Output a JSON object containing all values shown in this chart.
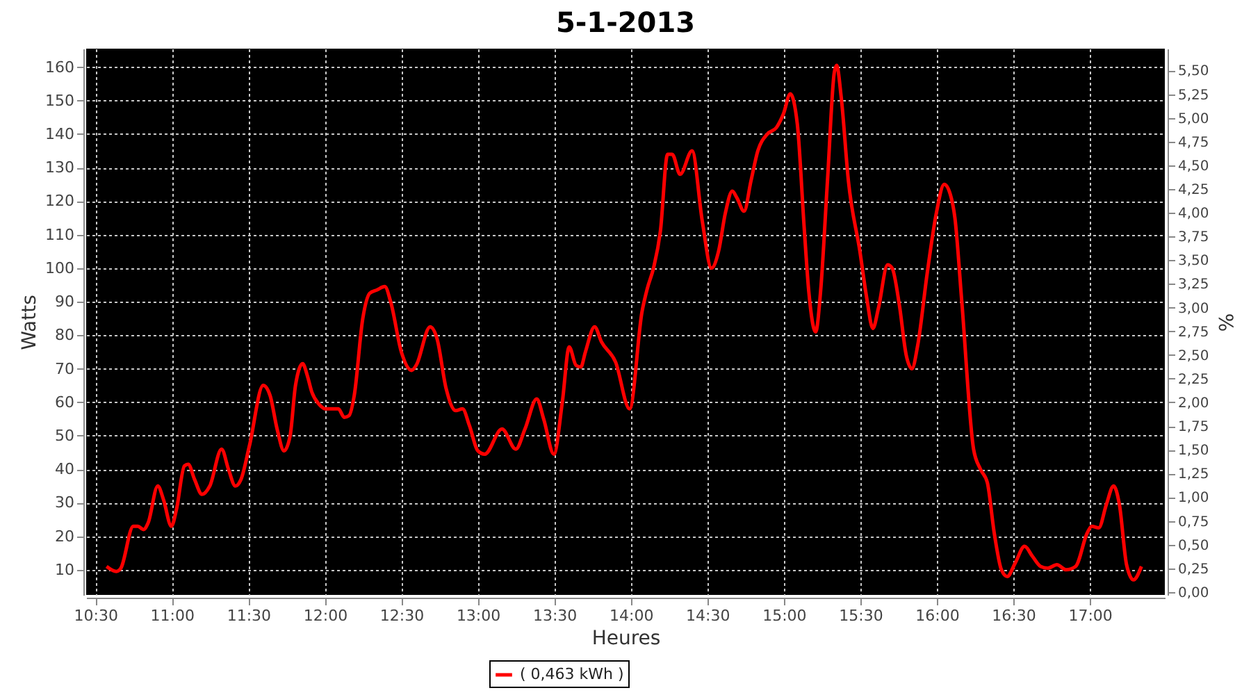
{
  "chart_data": {
    "type": "line",
    "title": "5-1-2013",
    "xlabel": "Heures",
    "ylabel": "Watts",
    "y2label": "%",
    "xlim": [
      10.44,
      17.49
    ],
    "xticks": [
      {
        "value": 10.5,
        "label": "10:30"
      },
      {
        "value": 11,
        "label": "11:00"
      },
      {
        "value": 11.5,
        "label": "11:30"
      },
      {
        "value": 12,
        "label": "12:00"
      },
      {
        "value": 12.5,
        "label": "12:30"
      },
      {
        "value": 13,
        "label": "13:00"
      },
      {
        "value": 13.5,
        "label": "13:30"
      },
      {
        "value": 14,
        "label": "14:00"
      },
      {
        "value": 14.5,
        "label": "14:30"
      },
      {
        "value": 15,
        "label": "15:00"
      },
      {
        "value": 15.5,
        "label": "15:30"
      },
      {
        "value": 16,
        "label": "16:00"
      },
      {
        "value": 16.5,
        "label": "16:30"
      },
      {
        "value": 17,
        "label": "17:00"
      }
    ],
    "ylim": [
      2.5,
      165.5
    ],
    "yticks": [
      10,
      20,
      30,
      40,
      50,
      60,
      70,
      80,
      90,
      100,
      110,
      120,
      130,
      140,
      150,
      160
    ],
    "y2lim": [
      -0.03,
      5.73
    ],
    "y2ticks": [
      {
        "value": 0,
        "label": "0,00"
      },
      {
        "value": 0.25,
        "label": "0,25"
      },
      {
        "value": 0.5,
        "label": "0,50"
      },
      {
        "value": 0.75,
        "label": "0,75"
      },
      {
        "value": 1,
        "label": "1,00"
      },
      {
        "value": 1.25,
        "label": "1,25"
      },
      {
        "value": 1.5,
        "label": "1,50"
      },
      {
        "value": 1.75,
        "label": "1,75"
      },
      {
        "value": 2,
        "label": "2,00"
      },
      {
        "value": 2.25,
        "label": "2,25"
      },
      {
        "value": 2.5,
        "label": "2,50"
      },
      {
        "value": 2.75,
        "label": "2,75"
      },
      {
        "value": 3,
        "label": "3,00"
      },
      {
        "value": 3.25,
        "label": "3,25"
      },
      {
        "value": 3.5,
        "label": "3,50"
      },
      {
        "value": 3.75,
        "label": "3,75"
      },
      {
        "value": 4,
        "label": "4,00"
      },
      {
        "value": 4.25,
        "label": "4,25"
      },
      {
        "value": 4.5,
        "label": "4,50"
      },
      {
        "value": 4.75,
        "label": "4,75"
      },
      {
        "value": 5,
        "label": "5,00"
      },
      {
        "value": 5.25,
        "label": "5,25"
      },
      {
        "value": 5.5,
        "label": "5,50"
      }
    ],
    "grid": true,
    "legend": "bottom",
    "series": [
      {
        "name": "( 0,463 kWh )",
        "color": "#ff0000",
        "x": [
          10.573,
          10.637,
          10.667,
          10.748,
          10.778,
          10.815,
          10.845,
          10.908,
          10.945,
          10.997,
          11.03,
          11.082,
          11.107,
          11.148,
          11.197,
          11.248,
          11.325,
          11.37,
          11.415,
          11.452,
          11.507,
          11.597,
          11.642,
          11.688,
          11.733,
          11.773,
          11.808,
          11.855,
          11.885,
          11.915,
          11.96,
          12.007,
          12.088,
          12.127,
          12.158,
          12.192,
          12.248,
          12.293,
          12.34,
          12.392,
          12.43,
          12.5,
          12.567,
          12.597,
          12.688,
          12.733,
          12.793,
          12.855,
          12.9,
          12.945,
          13.0,
          13.045,
          13.158,
          13.248,
          13.308,
          13.385,
          13.43,
          13.497,
          13.552,
          13.597,
          13.642,
          13.673,
          13.703,
          13.763,
          13.808,
          13.9,
          13.992,
          14.073,
          14.108,
          14.148,
          14.193,
          14.24,
          14.27,
          14.322,
          14.4,
          14.467,
          14.527,
          14.573,
          14.618,
          14.663,
          14.693,
          14.74,
          14.785,
          14.83,
          14.892,
          14.952,
          14.997,
          15.042,
          15.088,
          15.133,
          15.163,
          15.208,
          15.24,
          15.285,
          15.33,
          15.345,
          15.375,
          15.422,
          15.497,
          15.542,
          15.582,
          15.618,
          15.678,
          15.708,
          15.755,
          15.8,
          15.837,
          15.875,
          15.937,
          15.997,
          16.048,
          16.088,
          16.118,
          16.163,
          16.24,
          16.285,
          16.33,
          16.375,
          16.422,
          16.46,
          16.512,
          16.573,
          16.625,
          16.678,
          16.725,
          16.785,
          16.845,
          16.907,
          16.983,
          17.012,
          17.058,
          17.108,
          17.155,
          17.193,
          17.24,
          17.285,
          17.337
        ],
        "values": [
          11,
          9.5,
          10.5,
          23,
          23,
          22,
          24,
          35,
          31,
          23,
          28,
          41,
          41.5,
          37,
          32.5,
          35,
          46,
          40,
          35,
          37,
          47,
          65,
          62,
          52,
          45.5,
          50,
          65,
          71.5,
          68,
          63,
          59.5,
          58,
          58,
          55.5,
          56,
          62,
          85,
          92.5,
          93.5,
          94.5,
          90,
          75,
          69.5,
          71,
          82.5,
          79,
          64,
          57.5,
          58,
          53,
          45.5,
          44.5,
          52,
          46,
          52,
          61,
          55,
          44.5,
          60,
          76.5,
          71,
          70.5,
          75,
          82.5,
          78,
          72,
          58,
          87,
          94,
          100,
          111,
          134,
          134,
          128,
          135,
          114,
          100,
          105,
          116.5,
          123,
          121,
          117,
          126,
          135,
          140,
          142,
          146,
          152,
          143,
          112,
          93,
          81,
          93,
          126,
          158.5,
          160.5,
          151,
          126,
          105,
          91,
          82,
          88,
          101,
          100,
          89,
          74,
          70,
          77,
          98.5,
          116.5,
          125,
          122,
          115,
          90,
          46,
          40,
          36,
          21,
          10,
          8,
          12,
          17,
          14,
          11,
          10.5,
          11.5,
          10,
          11,
          21,
          23,
          22.5,
          29.5,
          35,
          29.5,
          11.5,
          7,
          11
        ]
      }
    ]
  }
}
